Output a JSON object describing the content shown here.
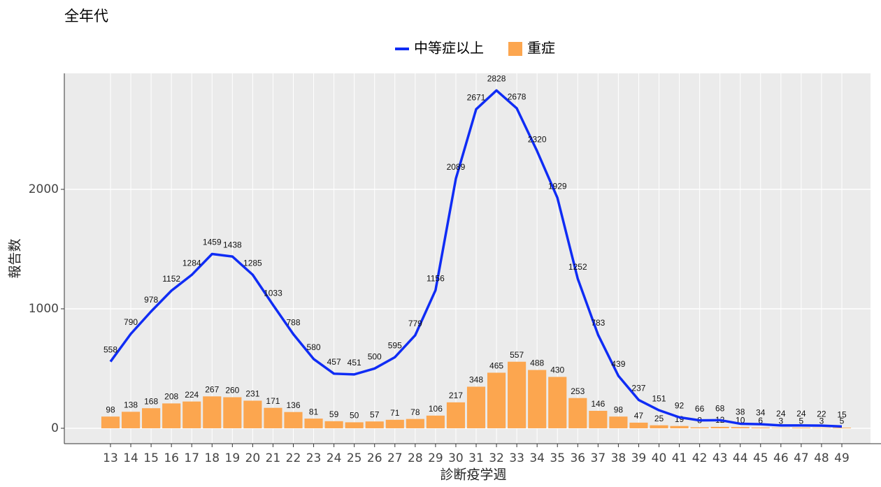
{
  "chart_data": {
    "type": "bar-line",
    "title": "全年代",
    "x_label": "診断疫学週",
    "y_label": "報告数",
    "categories": [
      "13",
      "14",
      "15",
      "16",
      "17",
      "18",
      "19",
      "20",
      "21",
      "22",
      "23",
      "24",
      "25",
      "26",
      "27",
      "28",
      "29",
      "30",
      "31",
      "32",
      "33",
      "34",
      "35",
      "36",
      "37",
      "38",
      "39",
      "40",
      "41",
      "42",
      "43",
      "44",
      "45",
      "46",
      "47",
      "48",
      "49"
    ],
    "series": [
      {
        "name": "中等症以上",
        "type": "line",
        "color": "#0f2cf5",
        "values": [
          558,
          790,
          978,
          1152,
          1284,
          1459,
          1438,
          1285,
          1033,
          788,
          580,
          457,
          451,
          500,
          595,
          779,
          1156,
          2089,
          2671,
          2828,
          2678,
          2320,
          1929,
          1252,
          783,
          439,
          237,
          151,
          92,
          66,
          68,
          38,
          34,
          24,
          24,
          22,
          15
        ]
      },
      {
        "name": "重症",
        "type": "bar",
        "color": "#fca64f",
        "values": [
          98,
          138,
          168,
          208,
          224,
          267,
          260,
          231,
          171,
          136,
          81,
          59,
          50,
          57,
          71,
          78,
          106,
          217,
          348,
          465,
          557,
          488,
          430,
          253,
          146,
          98,
          47,
          25,
          19,
          8,
          12,
          10,
          6,
          3,
          5,
          3,
          5
        ]
      }
    ],
    "ylim": [
      -129,
      2971
    ],
    "yticks": [
      0,
      1000,
      2000
    ],
    "grid": true,
    "legend": "top"
  }
}
